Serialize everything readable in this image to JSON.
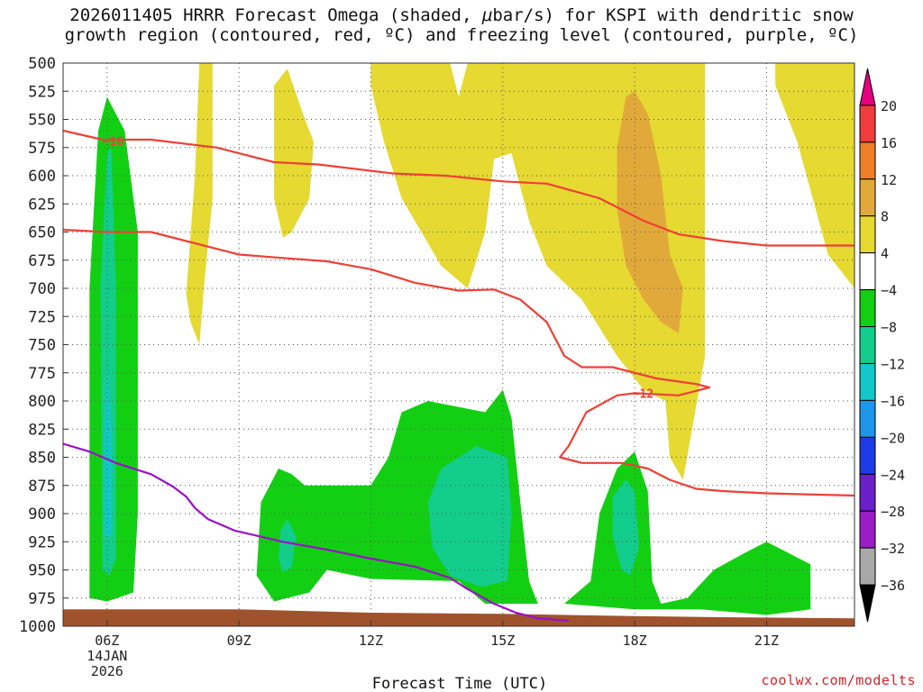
{
  "title": {
    "line1_a": "2026011405 HRRR Forecast Omega (shaded, ",
    "line1_mu": "μ",
    "line1_b": "bar/s) for KSPI with dendritic snow",
    "line2": "growth region (contoured, red, ºC) and freezing level (contoured, purple, ºC)"
  },
  "credit": "coolwx.com/modelts",
  "chart_data": {
    "type": "heatmap",
    "xlabel": "Forecast Time (UTC)",
    "x_range_hours": [
      5,
      23
    ],
    "x_ticks": [
      {
        "hour": 6,
        "label": "06Z",
        "sub1": "14JAN",
        "sub2": "2026"
      },
      {
        "hour": 9,
        "label": "09Z"
      },
      {
        "hour": 12,
        "label": "12Z"
      },
      {
        "hour": 15,
        "label": "15Z"
      },
      {
        "hour": 18,
        "label": "18Z"
      },
      {
        "hour": 21,
        "label": "21Z"
      }
    ],
    "y_range_mb": [
      500,
      1000
    ],
    "y_ticks": [
      500,
      525,
      550,
      575,
      600,
      625,
      650,
      675,
      700,
      725,
      750,
      775,
      800,
      825,
      850,
      875,
      900,
      925,
      950,
      975,
      1000
    ],
    "grid": true,
    "colorbar": {
      "labels": [
        "20",
        "16",
        "12",
        "8",
        "4",
        "−4",
        "−8",
        "−12",
        "−16",
        "−20",
        "−24",
        "−28",
        "−32",
        "−36"
      ],
      "colors": [
        "#e6007e",
        "#f03c3c",
        "#ee7f2a",
        "#e1a93a",
        "#e5d932",
        "#ffffff",
        "#13cf13",
        "#12cd8c",
        "#13c8c8",
        "#1e96e8",
        "#1e3ce6",
        "#6a1fc9",
        "#9b1dc6",
        "#a8a8a8",
        "#000000"
      ],
      "ends": {
        "top": "triangle",
        "bottom": "triangle"
      }
    },
    "filled_regions": [
      {
        "name": "green_06Z",
        "level": -4,
        "color": "#13cf13",
        "poly": [
          [
            5.6,
            975
          ],
          [
            5.6,
            700
          ],
          [
            5.8,
            560
          ],
          [
            6.0,
            530
          ],
          [
            6.4,
            560
          ],
          [
            6.7,
            650
          ],
          [
            6.7,
            900
          ],
          [
            6.6,
            970
          ],
          [
            6.0,
            978
          ]
        ]
      },
      {
        "name": "teal_06Z",
        "level": -8,
        "color": "#12cd8c",
        "poly": [
          [
            5.9,
            950
          ],
          [
            5.85,
            700
          ],
          [
            6.0,
            580
          ],
          [
            6.1,
            575
          ],
          [
            6.2,
            700
          ],
          [
            6.2,
            940
          ],
          [
            6.05,
            955
          ]
        ]
      },
      {
        "name": "cyan_06Z",
        "level": -12,
        "color": "#13c8c8",
        "poly": [
          [
            5.95,
            920
          ],
          [
            5.95,
            820
          ],
          [
            6.0,
            770
          ],
          [
            6.1,
            820
          ],
          [
            6.1,
            920
          ]
        ]
      },
      {
        "name": "green_09Z_15Z",
        "level": -4,
        "color": "#13cf13",
        "poly": [
          [
            9.4,
            955
          ],
          [
            9.5,
            890
          ],
          [
            9.9,
            860
          ],
          [
            10.2,
            865
          ],
          [
            10.5,
            875
          ],
          [
            12.0,
            875
          ],
          [
            12.4,
            850
          ],
          [
            12.7,
            810
          ],
          [
            13.3,
            800
          ],
          [
            14.6,
            810
          ],
          [
            15.0,
            790
          ],
          [
            15.2,
            815
          ],
          [
            15.4,
            890
          ],
          [
            15.6,
            960
          ],
          [
            15.8,
            980
          ],
          [
            14.6,
            980
          ],
          [
            14.0,
            960
          ],
          [
            12.0,
            958
          ],
          [
            11.0,
            950
          ],
          [
            10.6,
            970
          ],
          [
            9.8,
            978
          ]
        ]
      },
      {
        "name": "teal_09Z",
        "level": -8,
        "color": "#12cd8c",
        "poly": [
          [
            9.9,
            940
          ],
          [
            9.95,
            915
          ],
          [
            10.1,
            905
          ],
          [
            10.3,
            920
          ],
          [
            10.2,
            948
          ],
          [
            10.0,
            952
          ]
        ]
      },
      {
        "name": "teal_15Z",
        "level": -8,
        "color": "#12cd8c",
        "poly": [
          [
            13.4,
            930
          ],
          [
            13.3,
            890
          ],
          [
            13.6,
            860
          ],
          [
            14.4,
            840
          ],
          [
            15.1,
            850
          ],
          [
            15.2,
            900
          ],
          [
            15.1,
            960
          ],
          [
            14.5,
            965
          ],
          [
            13.8,
            955
          ]
        ]
      },
      {
        "name": "green_18Z_21Z",
        "level": -4,
        "color": "#13cf13",
        "poly": [
          [
            16.4,
            980
          ],
          [
            17.0,
            960
          ],
          [
            17.2,
            900
          ],
          [
            17.6,
            860
          ],
          [
            18.0,
            845
          ],
          [
            18.3,
            880
          ],
          [
            18.4,
            960
          ],
          [
            18.6,
            980
          ],
          [
            19.2,
            975
          ],
          [
            19.8,
            950
          ],
          [
            20.5,
            935
          ],
          [
            21.0,
            925
          ],
          [
            21.5,
            935
          ],
          [
            22.0,
            945
          ],
          [
            22.0,
            985
          ],
          [
            21.0,
            990
          ],
          [
            19.5,
            985
          ],
          [
            18.0,
            985
          ]
        ]
      },
      {
        "name": "teal_18Z",
        "level": -8,
        "color": "#12cd8c",
        "poly": [
          [
            17.5,
            920
          ],
          [
            17.5,
            885
          ],
          [
            17.8,
            870
          ],
          [
            18.0,
            880
          ],
          [
            18.1,
            930
          ],
          [
            17.9,
            955
          ],
          [
            17.7,
            950
          ]
        ]
      },
      {
        "name": "yellow_08Z",
        "level": 4,
        "color": "#e5d932",
        "poly": [
          [
            7.8,
            705
          ],
          [
            8.0,
            600
          ],
          [
            8.1,
            500
          ],
          [
            8.4,
            500
          ],
          [
            8.4,
            620
          ],
          [
            8.2,
            700
          ],
          [
            8.1,
            750
          ],
          [
            7.9,
            730
          ]
        ]
      },
      {
        "name": "yellow_10Z",
        "level": 4,
        "color": "#e5d932",
        "poly": [
          [
            9.8,
            620
          ],
          [
            9.8,
            520
          ],
          [
            10.1,
            505
          ],
          [
            10.5,
            550
          ],
          [
            10.7,
            570
          ],
          [
            10.6,
            620
          ],
          [
            10.2,
            650
          ],
          [
            10.0,
            655
          ]
        ]
      },
      {
        "name": "yellow_main",
        "level": 4,
        "color": "#e5d932",
        "poly": [
          [
            12.0,
            500
          ],
          [
            13.8,
            500
          ],
          [
            14.0,
            530
          ],
          [
            14.2,
            500
          ],
          [
            19.6,
            500
          ],
          [
            19.6,
            760
          ],
          [
            19.1,
            870
          ],
          [
            18.8,
            850
          ],
          [
            18.7,
            800
          ],
          [
            18.2,
            790
          ],
          [
            17.6,
            760
          ],
          [
            16.8,
            710
          ],
          [
            16.0,
            680
          ],
          [
            15.6,
            640
          ],
          [
            15.2,
            580
          ],
          [
            14.8,
            585
          ],
          [
            14.6,
            650
          ],
          [
            14.2,
            700
          ],
          [
            13.6,
            680
          ],
          [
            12.7,
            620
          ],
          [
            12.3,
            570
          ],
          [
            12.0,
            520
          ]
        ]
      },
      {
        "name": "yellow_right",
        "level": 4,
        "color": "#e5d932",
        "poly": [
          [
            21.2,
            500
          ],
          [
            23.0,
            500
          ],
          [
            23.0,
            700
          ],
          [
            22.4,
            670
          ],
          [
            21.7,
            570
          ],
          [
            21.2,
            520
          ]
        ]
      },
      {
        "name": "orange_18Z",
        "level": 8,
        "color": "#e1a93a",
        "poly": [
          [
            17.6,
            575
          ],
          [
            17.8,
            530
          ],
          [
            18.0,
            525
          ],
          [
            18.3,
            545
          ],
          [
            18.6,
            600
          ],
          [
            18.8,
            670
          ],
          [
            19.1,
            700
          ],
          [
            19.0,
            740
          ],
          [
            18.6,
            730
          ],
          [
            18.2,
            710
          ],
          [
            17.8,
            680
          ],
          [
            17.6,
            630
          ]
        ]
      }
    ],
    "red_contours": [
      {
        "label": "−16",
        "label_at": [
          5.9,
          569
        ],
        "points": [
          [
            5,
            560
          ],
          [
            5.9,
            568
          ],
          [
            7.0,
            568
          ],
          [
            8.5,
            575
          ],
          [
            9.8,
            588
          ],
          [
            10.8,
            590
          ],
          [
            12.5,
            598
          ],
          [
            13.7,
            600
          ],
          [
            15.0,
            605
          ],
          [
            16.0,
            607
          ],
          [
            17.2,
            620
          ],
          [
            18.2,
            640
          ],
          [
            19.0,
            652
          ],
          [
            20.0,
            658
          ],
          [
            21.0,
            662
          ],
          [
            23.0,
            662
          ]
        ]
      },
      {
        "label": "−12",
        "label_at": [
          17.95,
          793
        ],
        "points": [
          [
            5,
            648
          ],
          [
            6.0,
            650
          ],
          [
            7.0,
            650
          ],
          [
            8.0,
            660
          ],
          [
            9.0,
            670
          ],
          [
            10.0,
            673
          ],
          [
            11.0,
            676
          ],
          [
            12.0,
            683
          ],
          [
            13.0,
            695
          ],
          [
            14.0,
            702
          ],
          [
            14.8,
            701
          ],
          [
            15.4,
            710
          ],
          [
            16.0,
            730
          ],
          [
            16.4,
            760
          ],
          [
            16.8,
            770
          ],
          [
            17.5,
            770
          ],
          [
            18.5,
            780
          ],
          [
            19.4,
            785
          ],
          [
            19.7,
            788
          ],
          [
            19.0,
            795
          ],
          [
            18.0,
            793
          ],
          [
            17.6,
            795
          ],
          [
            16.9,
            810
          ],
          [
            16.5,
            840
          ],
          [
            16.3,
            850
          ],
          [
            16.8,
            855
          ],
          [
            17.7,
            855
          ],
          [
            18.3,
            860
          ],
          [
            18.8,
            870
          ],
          [
            19.4,
            878
          ],
          [
            20.0,
            880
          ],
          [
            21.0,
            882
          ],
          [
            23.0,
            884
          ]
        ]
      }
    ],
    "purple_contours": [
      {
        "label": "",
        "points": [
          [
            5,
            838
          ],
          [
            5.6,
            845
          ],
          [
            6.2,
            855
          ],
          [
            7.0,
            865
          ],
          [
            7.5,
            876
          ],
          [
            7.8,
            885
          ],
          [
            8.0,
            895
          ],
          [
            8.3,
            905
          ],
          [
            8.9,
            915
          ],
          [
            10.0,
            925
          ],
          [
            11.0,
            932
          ],
          [
            12.0,
            940
          ],
          [
            13.0,
            947
          ],
          [
            13.8,
            957
          ],
          [
            14.2,
            967
          ],
          [
            14.8,
            980
          ],
          [
            15.3,
            988
          ],
          [
            15.8,
            993
          ],
          [
            16.5,
            995
          ]
        ]
      }
    ],
    "terrain": {
      "color": "#a0522d",
      "surface_mb": [
        [
          5,
          985
        ],
        [
          9,
          985
        ],
        [
          12,
          988
        ],
        [
          15,
          989
        ],
        [
          18,
          991
        ],
        [
          20,
          992
        ],
        [
          23,
          993
        ]
      ]
    }
  }
}
